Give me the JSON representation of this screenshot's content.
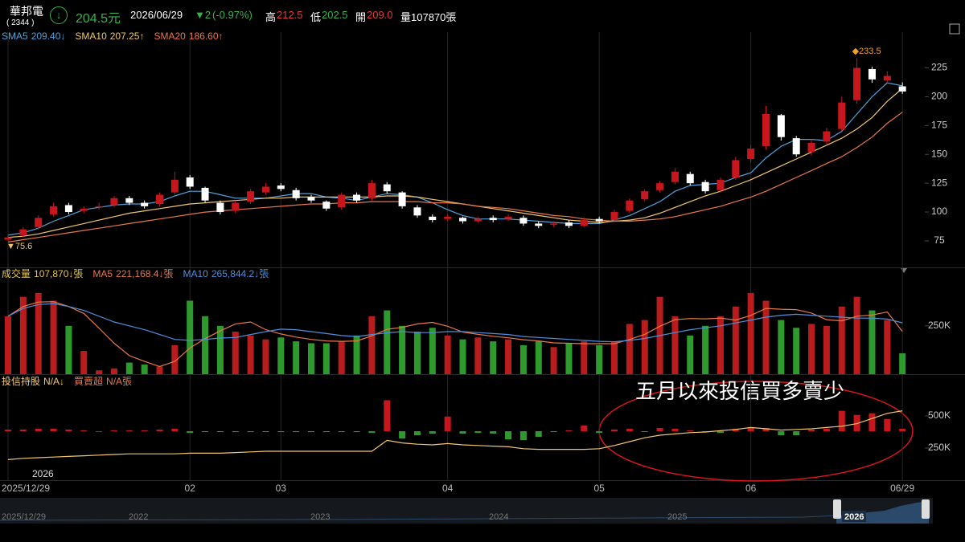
{
  "header": {
    "name": "華邦電",
    "code": "( 2344 )",
    "price": "204.5元",
    "date": "2026/06/29",
    "change": "▼2",
    "change_pct": "(-0.97%)",
    "high_label": "高",
    "high": "212.5",
    "low_label": "低",
    "low": "202.5",
    "open_label": "開",
    "open": "209.0",
    "volume": "量107870張"
  },
  "chart_data": [
    {
      "type": "candlestick",
      "up_color": "#c8161d",
      "down_color": "#ffffff",
      "ylim": [
        52,
        256
      ],
      "yticks": [
        75,
        100,
        125,
        150,
        175,
        200,
        225
      ],
      "max_label": "◆233.5",
      "min_label": "▼75.6",
      "year_label": "2026",
      "categories": [
        "2025/12/29",
        null,
        null,
        null,
        null,
        null,
        null,
        null,
        null,
        null,
        null,
        null,
        "02",
        null,
        null,
        null,
        null,
        null,
        "03",
        null,
        null,
        null,
        null,
        null,
        null,
        null,
        null,
        null,
        null,
        "04",
        null,
        null,
        null,
        null,
        null,
        null,
        null,
        null,
        null,
        "05",
        null,
        null,
        null,
        null,
        null,
        null,
        null,
        null,
        null,
        "06",
        null,
        null,
        null,
        null,
        null,
        null,
        null,
        null,
        null,
        "06/29"
      ],
      "open": [
        76,
        80,
        87,
        98,
        106,
        101,
        104,
        106,
        112,
        108,
        107,
        117,
        130,
        121,
        108,
        101,
        109,
        117,
        123,
        119,
        113,
        109,
        104,
        115,
        112,
        124,
        117,
        104,
        96,
        94,
        95,
        92,
        95,
        94,
        95,
        90,
        89,
        91,
        88,
        94,
        93,
        101,
        111,
        119,
        126,
        133,
        126,
        119,
        130,
        146,
        157,
        184,
        164,
        152,
        161,
        172,
        197,
        224,
        214,
        209
      ],
      "high": [
        80,
        87,
        97,
        108,
        108,
        105,
        108,
        114,
        114,
        110,
        117,
        135,
        132,
        122,
        110,
        110,
        120,
        125,
        125,
        121,
        115,
        110,
        117,
        117,
        128,
        126,
        118,
        106,
        98,
        98,
        96,
        96,
        97,
        98,
        97,
        92,
        92,
        93,
        95,
        96,
        102,
        112,
        120,
        127,
        138,
        135,
        128,
        130,
        148,
        158,
        192,
        185,
        166,
        163,
        173,
        200,
        233.5,
        226,
        222,
        212.5
      ],
      "low": [
        75.6,
        78,
        85,
        96,
        98,
        99,
        102,
        104,
        106,
        103,
        105,
        115,
        120,
        108,
        98,
        99,
        107,
        115,
        118,
        110,
        108,
        101,
        102,
        108,
        110,
        116,
        103,
        95,
        91,
        92,
        90,
        91,
        91,
        92,
        88,
        86,
        87,
        86,
        87,
        90,
        92,
        99,
        109,
        117,
        124,
        123,
        116,
        117,
        128,
        143,
        154,
        162,
        148,
        149,
        158,
        170,
        194,
        212,
        212,
        202.5
      ],
      "close": [
        78,
        85,
        95,
        105,
        100,
        103,
        105,
        112,
        108,
        105,
        115,
        128,
        122,
        110,
        100,
        108,
        118,
        122,
        120,
        112,
        110,
        103,
        115,
        110,
        125,
        118,
        105,
        97,
        93,
        96,
        92,
        94,
        93,
        96,
        90,
        88,
        90,
        88,
        93,
        92,
        100,
        110,
        118,
        125,
        135,
        125,
        118,
        128,
        145,
        155,
        185,
        165,
        150,
        160,
        170,
        195,
        225,
        215,
        218,
        204.5
      ],
      "series": [
        {
          "name": "SMA5",
          "label": "209.40↓",
          "type": "line",
          "color": "#4ea3dc",
          "values": [
            80,
            82,
            86,
            92,
            97,
            102,
            104,
            106,
            107,
            107,
            109,
            114,
            118,
            118,
            115,
            112,
            112,
            112,
            114,
            116,
            116,
            113,
            112,
            110,
            113,
            116,
            115,
            113,
            108,
            102,
            97,
            94,
            94,
            94,
            93,
            92,
            91,
            90,
            90,
            90,
            93,
            97,
            103,
            109,
            118,
            123,
            124,
            125,
            130,
            134,
            147,
            157,
            163,
            163,
            162,
            170,
            185,
            200,
            212,
            209.4
          ]
        },
        {
          "name": "SMA10",
          "label": "207.25↑",
          "type": "line",
          "color": "#f2c66d",
          "values": [
            78,
            79,
            81,
            84,
            87,
            90,
            93,
            96,
            99,
            101,
            103,
            105,
            107,
            108,
            109,
            110,
            111,
            112,
            112,
            113,
            113,
            113,
            113,
            113,
            113,
            114,
            114,
            113,
            111,
            109,
            107,
            105,
            103,
            101,
            99,
            97,
            95,
            93,
            92,
            91,
            92,
            93,
            95,
            99,
            104,
            109,
            114,
            118,
            123,
            128,
            134,
            140,
            146,
            152,
            158,
            164,
            172,
            182,
            196,
            207.25
          ]
        },
        {
          "name": "SMA20",
          "label": "186.60↑",
          "type": "line",
          "color": "#e8774a",
          "values": [
            74,
            76,
            78,
            80,
            82,
            84,
            86,
            88,
            90,
            92,
            94,
            96,
            98,
            100,
            101,
            102,
            103,
            104,
            105,
            106,
            107,
            107,
            108,
            108,
            109,
            109,
            109,
            109,
            108,
            108,
            107,
            105,
            104,
            103,
            101,
            99,
            97,
            96,
            94,
            93,
            92,
            92,
            93,
            94,
            96,
            99,
            102,
            105,
            109,
            113,
            118,
            124,
            130,
            136,
            142,
            148,
            156,
            165,
            177,
            186.6
          ]
        }
      ]
    },
    {
      "type": "bar",
      "ylim": [
        0,
        540000
      ],
      "yticks": [
        {
          "value": 250000,
          "label": "250K"
        }
      ],
      "series": [
        {
          "name": "成交量",
          "label": "107,870↓張",
          "type": "bar",
          "color": "#e8c64a",
          "up_color": "#b81c1c",
          "down_color": "#2e9a2e",
          "values": [
            300000,
            400000,
            420000,
            380000,
            250000,
            120000,
            20000,
            30000,
            60000,
            50000,
            40000,
            150000,
            380000,
            300000,
            250000,
            220000,
            200000,
            180000,
            190000,
            170000,
            160000,
            160000,
            170000,
            200000,
            300000,
            330000,
            250000,
            220000,
            240000,
            200000,
            180000,
            190000,
            170000,
            180000,
            150000,
            170000,
            140000,
            160000,
            170000,
            150000,
            170000,
            260000,
            280000,
            400000,
            300000,
            200000,
            250000,
            300000,
            350000,
            420000,
            380000,
            280000,
            240000,
            260000,
            250000,
            350000,
            400000,
            330000,
            280000,
            107870
          ]
        },
        {
          "name": "MA5",
          "label": "221,168.4↓張",
          "type": "line",
          "color": "#e8774a",
          "values": [
            300000,
            350000,
            373000,
            375000,
            350000,
            314000,
            238000,
            160000,
            96000,
            66000,
            40000,
            66000,
            136000,
            184000,
            224000,
            260000,
            270000,
            230000,
            208000,
            192000,
            180000,
            172000,
            170000,
            172000,
            198000,
            232000,
            242000,
            260000,
            268000,
            248000,
            218000,
            206000,
            196000,
            188000,
            178000,
            172000,
            162000,
            160000,
            158000,
            158000,
            158000,
            180000,
            206000,
            248000,
            282000,
            288000,
            286000,
            290000,
            280000,
            304000,
            340000,
            336000,
            334000,
            316000,
            282000,
            276000,
            300000,
            306000,
            322000,
            221168.4
          ]
        },
        {
          "name": "MA10",
          "label": "265,844.2↓張",
          "type": "line",
          "color": "#4e8fdc",
          "values": [
            300000,
            340000,
            360000,
            365000,
            350000,
            330000,
            300000,
            270000,
            250000,
            230000,
            205000,
            180000,
            175000,
            180000,
            187000,
            190000,
            205000,
            220000,
            233000,
            230000,
            220000,
            210000,
            200000,
            195000,
            205000,
            214000,
            220000,
            215000,
            215000,
            220000,
            220000,
            215000,
            210000,
            205000,
            195000,
            190000,
            185000,
            180000,
            175000,
            170000,
            168000,
            175000,
            185000,
            200000,
            215000,
            230000,
            240000,
            250000,
            265000,
            280000,
            295000,
            305000,
            310000,
            305000,
            300000,
            295000,
            290000,
            290000,
            285000,
            265844.2
          ]
        }
      ]
    },
    {
      "type": "bar",
      "ylim": [
        0,
        800000
      ],
      "yticks": [
        {
          "value": 250000,
          "label": "250K"
        },
        {
          "value": 500000,
          "label": "500K"
        }
      ],
      "y2lim": [
        -6000,
        6600
      ],
      "annotation": "五月以來投信買多賣少",
      "series": [
        {
          "name": "投信持股",
          "label": "N/A↓",
          "type": "line",
          "color": "#f2c66d",
          "values": [
            160000,
            170000,
            175000,
            180000,
            185000,
            190000,
            195000,
            200000,
            205000,
            205000,
            205000,
            205000,
            210000,
            210000,
            210000,
            215000,
            220000,
            225000,
            225000,
            225000,
            225000,
            225000,
            225000,
            225000,
            225000,
            310000,
            290000,
            280000,
            275000,
            285000,
            275000,
            270000,
            265000,
            260000,
            245000,
            240000,
            240000,
            240000,
            240000,
            245000,
            270000,
            300000,
            330000,
            350000,
            360000,
            370000,
            375000,
            385000,
            395000,
            410000,
            400000,
            390000,
            395000,
            400000,
            410000,
            420000,
            440000,
            480000,
            520000,
            540000
          ]
        },
        {
          "name": "買賣超",
          "label": "N/A張",
          "type": "bar",
          "axis": "y2",
          "color": "#e8774a",
          "pos_color": "#c8161d",
          "neg_color": "#2e9a2e",
          "values": [
            200,
            200,
            300,
            300,
            200,
            100,
            0,
            100,
            100,
            100,
            200,
            300,
            -200,
            -100,
            -100,
            -100,
            -100,
            -100,
            -100,
            -100,
            -100,
            -100,
            -100,
            -100,
            -200,
            3800,
            -900,
            -500,
            -300,
            1800,
            -300,
            -200,
            -300,
            -1000,
            -1100,
            -700,
            -100,
            100,
            700,
            -200,
            200,
            300,
            -100,
            400,
            300,
            100,
            -100,
            -200,
            300,
            400,
            400,
            -500,
            -500,
            200,
            300,
            2500,
            2000,
            2200,
            1500,
            300
          ]
        }
      ]
    }
  ],
  "navigator": {
    "labels": [
      "2025/12/29",
      "2022",
      "2023",
      "2024",
      "2025",
      "2026"
    ]
  }
}
